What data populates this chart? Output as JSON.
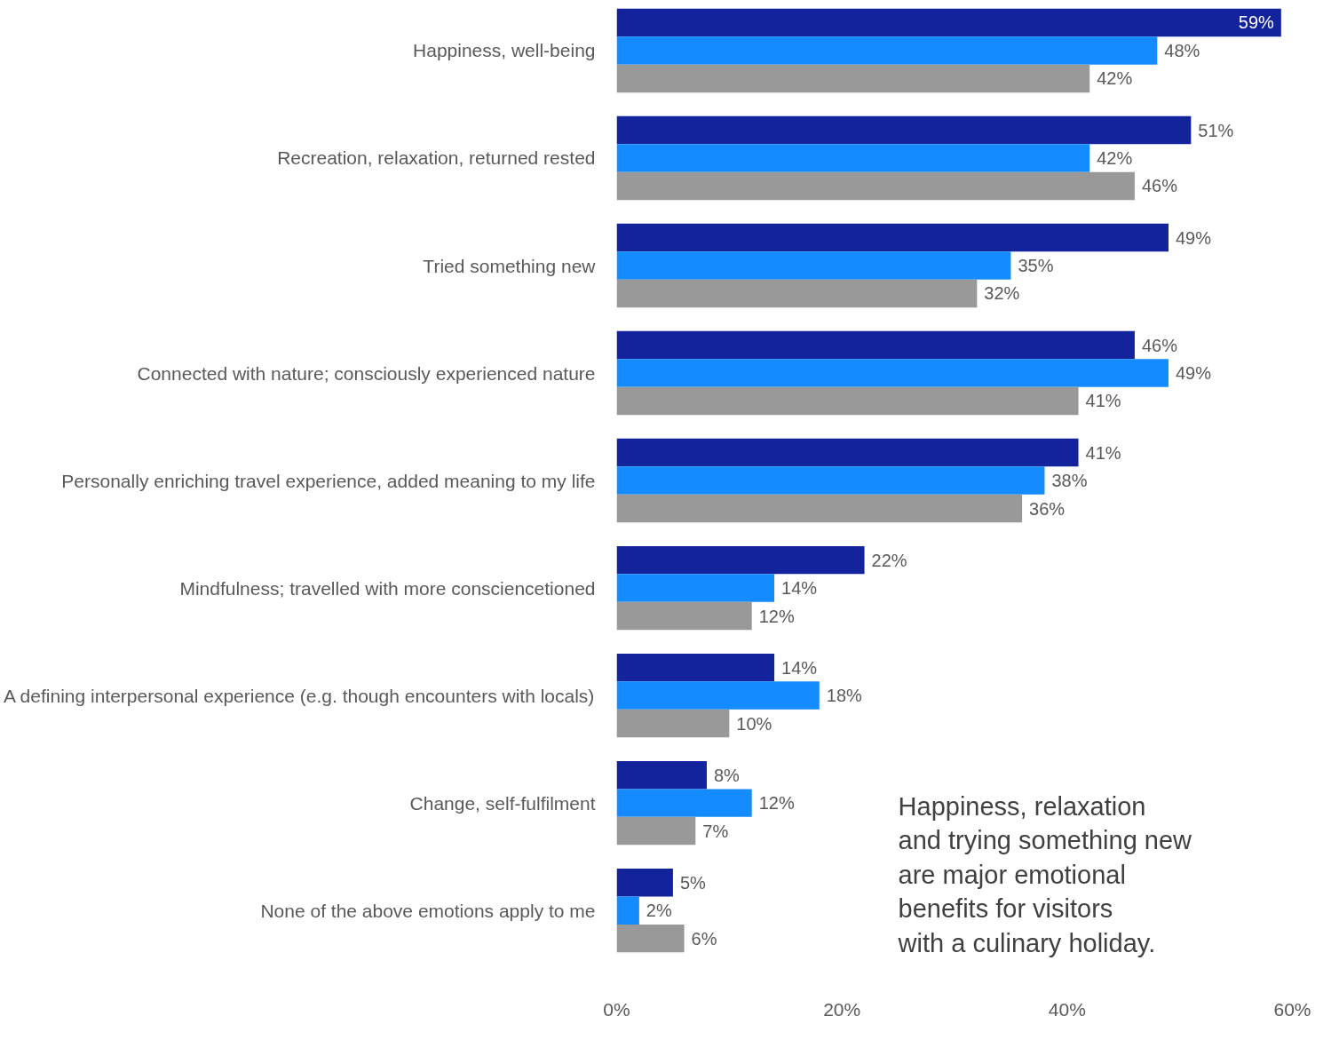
{
  "chart_data": {
    "type": "bar",
    "orientation": "horizontal",
    "categories": [
      "Happiness, well-being",
      "Recreation, relaxation, returned rested",
      "Tried something new",
      "Connected with nature; consciously experienced nature",
      "Personally enriching travel experience, added meaning to my life",
      "Mindfulness; travelled with more consciencetioned",
      "A defining interpersonal experience (e.g. though encounters with locals)",
      "Change, self-fulfilment",
      "None of the above emotions apply to me"
    ],
    "series": [
      {
        "color": "#13239b",
        "values": [
          59,
          51,
          49,
          46,
          41,
          22,
          14,
          8,
          5
        ],
        "value_labels": [
          "59%",
          "51%",
          "49%",
          "46%",
          "41%",
          "22%",
          "14%",
          "8%",
          "5%"
        ]
      },
      {
        "color": "#148cff",
        "values": [
          48,
          42,
          35,
          49,
          38,
          14,
          18,
          12,
          2
        ],
        "value_labels": [
          "48%",
          "42%",
          "35%",
          "49%",
          "38%",
          "14%",
          "18%",
          "12%",
          "2%"
        ]
      },
      {
        "color": "#999999",
        "values": [
          42,
          46,
          32,
          41,
          36,
          12,
          10,
          7,
          6
        ],
        "value_labels": [
          "42%",
          "46%",
          "32%",
          "41%",
          "36%",
          "12%",
          "10%",
          "7%",
          "6%"
        ]
      }
    ],
    "xlim": [
      0,
      60
    ],
    "xticks": [
      {
        "value": 0,
        "label": "0%"
      },
      {
        "value": 20,
        "label": "20%"
      },
      {
        "value": 40,
        "label": "40%"
      },
      {
        "value": 60,
        "label": "60%"
      }
    ],
    "grid": false,
    "annotations": [
      "Happiness, relaxation and trying something new are major emotional benefits for visitors with a culinary holiday."
    ]
  }
}
